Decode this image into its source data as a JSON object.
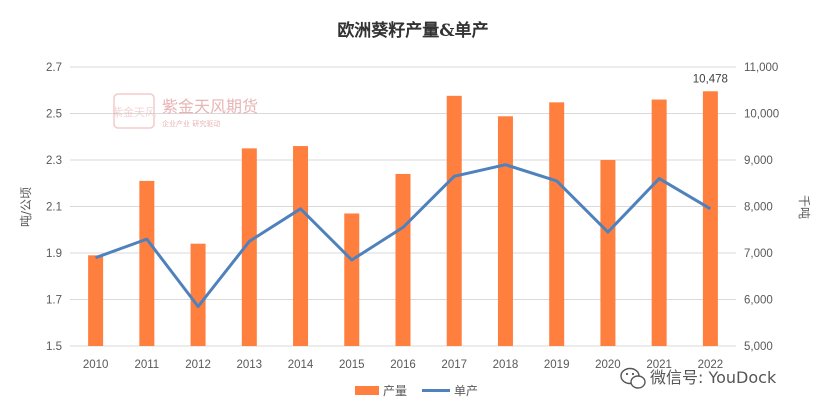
{
  "chart_data": {
    "type": "bar+line",
    "title": "欧洲葵籽产量&单产",
    "categories": [
      "2010",
      "2011",
      "2012",
      "2013",
      "2014",
      "2015",
      "2016",
      "2017",
      "2018",
      "2019",
      "2020",
      "2021",
      "2022"
    ],
    "series": [
      {
        "name": "产量",
        "type": "bar",
        "axis": "right",
        "color": "#ff7f3f",
        "values": [
          6950,
          8550,
          7200,
          9250,
          9300,
          7850,
          8700,
          10380,
          9940,
          10240,
          9000,
          10300,
          10478
        ]
      },
      {
        "name": "单产",
        "type": "line",
        "axis": "left",
        "color": "#4f81bd",
        "values": [
          1.88,
          1.96,
          1.67,
          1.95,
          2.09,
          1.87,
          2.01,
          2.23,
          2.28,
          2.21,
          1.99,
          2.22,
          2.09
        ]
      }
    ],
    "ylabel_left": "吨/公顷",
    "ylim_left": [
      1.5,
      2.7
    ],
    "yticks_left": [
      "1.5",
      "1.7",
      "1.9",
      "2.1",
      "2.3",
      "2.5",
      "2.7"
    ],
    "ylabel_right": "千吨",
    "ylim_right": [
      5000,
      11000
    ],
    "yticks_right": [
      "5,000",
      "6,000",
      "7,000",
      "8,000",
      "9,000",
      "10,000",
      "11,000"
    ],
    "annotations": [
      {
        "category": "2022",
        "series": "产量",
        "text": "10,478"
      }
    ],
    "grid": true,
    "legend": "bottom"
  },
  "watermark": {
    "logo_text": "紫金天风",
    "name": "紫金天风期货",
    "slogan": "企业产业 研究驱动"
  },
  "wechat_badge": {
    "text": "微信号: YouDock"
  }
}
